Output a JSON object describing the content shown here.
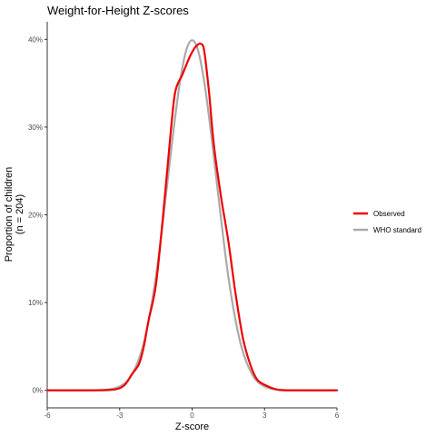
{
  "chart_data": {
    "type": "line",
    "title": "Weight-for-Height Z-scores",
    "xlabel": "Z-score",
    "ylabel_lines": [
      "Proportion of children",
      "(n = 204)"
    ],
    "xlim": [
      -6,
      6
    ],
    "ylim": [
      -2,
      42
    ],
    "x_ticks": [
      -6,
      -3,
      0,
      3,
      6
    ],
    "x_tick_labels": [
      "-6",
      "-3",
      "0",
      "3",
      "6"
    ],
    "y_ticks": [
      0,
      10,
      20,
      30,
      40
    ],
    "y_tick_labels": [
      "0%",
      "10%",
      "20%",
      "30%",
      "40%"
    ],
    "grid": false,
    "legend_position": "right",
    "series": [
      {
        "name": "Observed",
        "color": "#ee0000",
        "points": [
          [
            -6,
            0
          ],
          [
            -4,
            0
          ],
          [
            -3.2,
            0.1
          ],
          [
            -2.8,
            0.6
          ],
          [
            -2.5,
            1.8
          ],
          [
            -2.2,
            3.0
          ],
          [
            -2.0,
            5.0
          ],
          [
            -1.8,
            8.0
          ],
          [
            -1.5,
            12.0
          ],
          [
            -1.2,
            20.0
          ],
          [
            -0.9,
            29.0
          ],
          [
            -0.7,
            34.0
          ],
          [
            -0.4,
            36.0
          ],
          [
            -0.1,
            38.0
          ],
          [
            0.1,
            39.0
          ],
          [
            0.2,
            39.3
          ],
          [
            0.35,
            39.5
          ],
          [
            0.5,
            38.7
          ],
          [
            0.7,
            34.0
          ],
          [
            0.9,
            28.0
          ],
          [
            1.2,
            22.0
          ],
          [
            1.5,
            17.0
          ],
          [
            1.8,
            11.0
          ],
          [
            2.1,
            6.0
          ],
          [
            2.4,
            3.0
          ],
          [
            2.7,
            1.2
          ],
          [
            3.1,
            0.5
          ],
          [
            3.5,
            0.1
          ],
          [
            4,
            0
          ],
          [
            6,
            0
          ]
        ]
      },
      {
        "name": "WHO standard",
        "color": "#aaaaaa",
        "points": [
          [
            -6,
            0
          ],
          [
            -4,
            0.01
          ],
          [
            -3.5,
            0.09
          ],
          [
            -3.0,
            0.44
          ],
          [
            -2.5,
            1.75
          ],
          [
            -2.0,
            5.4
          ],
          [
            -1.5,
            12.95
          ],
          [
            -1.0,
            24.2
          ],
          [
            -0.75,
            30.1
          ],
          [
            -0.5,
            35.2
          ],
          [
            -0.25,
            38.7
          ],
          [
            0,
            39.9
          ],
          [
            0.25,
            38.7
          ],
          [
            0.5,
            35.2
          ],
          [
            0.75,
            30.1
          ],
          [
            1.0,
            24.2
          ],
          [
            1.5,
            12.95
          ],
          [
            2.0,
            5.4
          ],
          [
            2.5,
            1.75
          ],
          [
            3.0,
            0.44
          ],
          [
            3.5,
            0.09
          ],
          [
            4,
            0.01
          ],
          [
            6,
            0
          ]
        ]
      }
    ]
  }
}
